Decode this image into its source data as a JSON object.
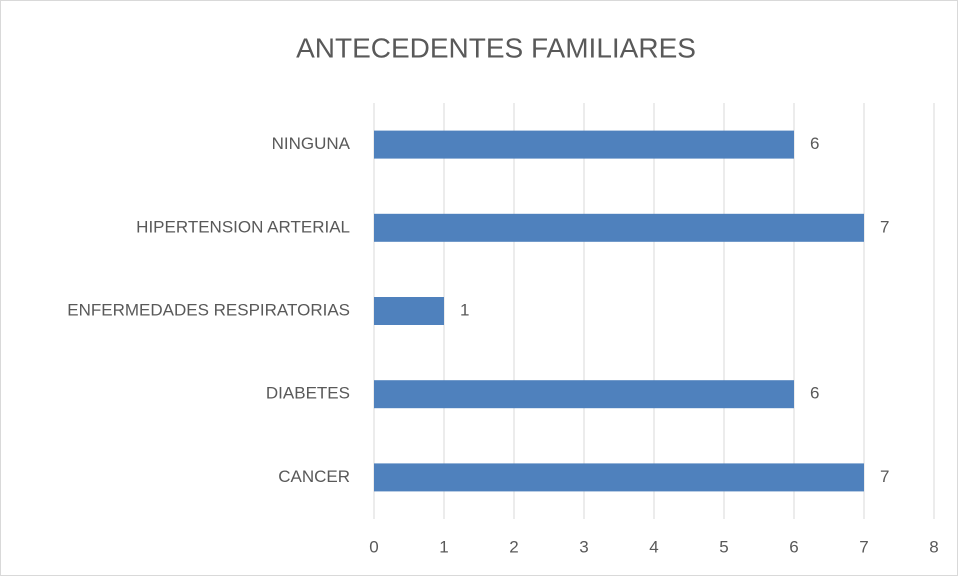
{
  "chart_data": {
    "type": "bar",
    "orientation": "horizontal",
    "title": "ANTECEDENTES FAMILIARES",
    "categories": [
      "NINGUNA",
      "HIPERTENSION ARTERIAL",
      "ENFERMEDADES RESPIRATORIAS",
      "DIABETES",
      "CANCER"
    ],
    "values": [
      6,
      7,
      1,
      6,
      7
    ],
    "color": "#4f81bd",
    "xlim": [
      0,
      8
    ],
    "xticks": [
      0,
      1,
      2,
      3,
      4,
      5,
      6,
      7,
      8
    ],
    "grid": true,
    "data_labels": true
  }
}
